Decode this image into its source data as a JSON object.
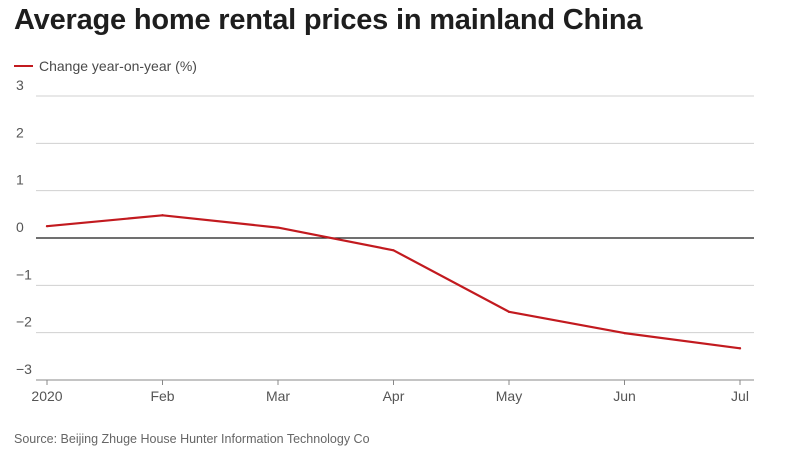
{
  "title": "Average home rental prices in mainland China",
  "legend_label": "Change year-on-year (%)",
  "source": "Source: Beijing Zhuge House Hunter Information Technology Co",
  "colors": {
    "series": "#c21a1f",
    "grid": "#d0d0d0",
    "zero_line": "#1a1a1a",
    "axis": "#888888"
  },
  "chart_data": {
    "type": "line",
    "title": "Average home rental prices in mainland China",
    "xlabel": "",
    "ylabel": "",
    "categories": [
      "2020",
      "Feb",
      "Mar",
      "Apr",
      "May",
      "Jun",
      "Jul"
    ],
    "series": [
      {
        "name": "Change year-on-year (%)",
        "values": [
          0.25,
          0.48,
          0.22,
          -0.26,
          -1.56,
          -2.01,
          -2.33
        ]
      }
    ],
    "yticks": [
      3,
      2,
      1,
      0,
      -1,
      -2,
      -3
    ],
    "ytick_labels": [
      "3",
      "2",
      "1",
      "0",
      "−1",
      "−2",
      "−3"
    ],
    "ylim": [
      -3,
      3
    ],
    "grid": true,
    "legend": "top-left"
  }
}
